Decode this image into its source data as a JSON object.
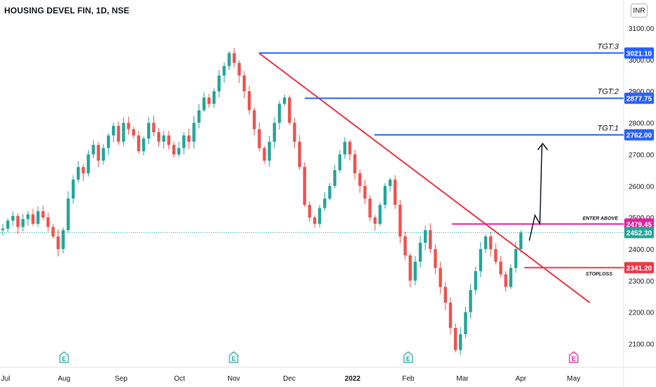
{
  "header": {
    "symbol_title": "HOUSING DEVEL FIN, 1D, NSE",
    "currency": "INR"
  },
  "chart_data": {
    "type": "candlestick",
    "title": "HOUSING DEVEL FIN, 1D, NSE",
    "x_axis": {
      "tick_labels": [
        "Jul",
        "Aug",
        "Sep",
        "Oct",
        "Nov",
        "Dec",
        "2022",
        "Feb",
        "Mar",
        "Apr",
        "May"
      ]
    },
    "y_axis": {
      "range": [
        2040,
        3180
      ],
      "ticks": [
        2100,
        2200,
        2300,
        2400,
        2500,
        2600,
        2700,
        2800,
        2900,
        3000,
        3100
      ],
      "tick_labels": [
        "2100.00",
        "2200.00",
        "2300.00",
        "2400.00",
        "2500.00",
        "2600.00",
        "2700.00",
        "2800.00",
        "2900.00",
        "3000.00",
        "3100.00"
      ],
      "grid": false
    },
    "colors": {
      "up": "#26a69a",
      "down": "#ef5350",
      "trendline": "#f23645",
      "target": "#2962ff",
      "entry": "#e91e9e",
      "stoploss": "#f23645",
      "last_price": "#26a69a",
      "arrow": "#131722"
    },
    "last_price": {
      "label": "2452.30",
      "value": 2452.3
    },
    "levels": [
      {
        "name": "TGT:3",
        "label": "TGT:3",
        "price_label": "3021.10",
        "value": 3021.1,
        "color": "#2962ff"
      },
      {
        "name": "TGT:2",
        "label": "TGT:2",
        "price_label": "2877.75",
        "value": 2877.75,
        "color": "#2962ff"
      },
      {
        "name": "TGT:1",
        "label": "TGT:1",
        "price_label": "2762.00",
        "value": 2762.0,
        "color": "#2962ff"
      },
      {
        "name": "enter-above",
        "label": "ENTER ABOVE",
        "price_label": "2479.45",
        "value": 2479.45,
        "color": "#e91e9e"
      },
      {
        "name": "stoploss",
        "label": "STOPLOSS",
        "price_label": "2341.20",
        "value": 2341.2,
        "color": "#f23645"
      }
    ],
    "trendline": {
      "from": {
        "x": "Nov",
        "y": 3021
      },
      "to": {
        "x": "May",
        "y": 2230
      }
    },
    "event_markers": [
      {
        "label": "E",
        "x": "Aug",
        "color": "#26a69a"
      },
      {
        "label": "E",
        "x": "Nov",
        "color": "#26a69a"
      },
      {
        "label": "E",
        "x": "Feb",
        "color": "#26a69a"
      },
      {
        "label": "E",
        "x": "May",
        "color": "#e91e9e"
      }
    ],
    "price_path": [
      2465,
      2490,
      2505,
      2470,
      2495,
      2510,
      2480,
      2520,
      2500,
      2470,
      2440,
      2400,
      2460,
      2560,
      2620,
      2660,
      2640,
      2700,
      2730,
      2680,
      2720,
      2760,
      2790,
      2740,
      2800,
      2780,
      2760,
      2710,
      2750,
      2800,
      2770,
      2740,
      2760,
      2730,
      2700,
      2720,
      2760,
      2740,
      2800,
      2840,
      2880,
      2860,
      2900,
      2950,
      2980,
      3021,
      2990,
      2950,
      2900,
      2840,
      2780,
      2720,
      2680,
      2740,
      2800,
      2860,
      2880,
      2800,
      2740,
      2660,
      2540,
      2500,
      2480,
      2530,
      2560,
      2600,
      2650,
      2700,
      2740,
      2700,
      2640,
      2600,
      2560,
      2500,
      2480,
      2540,
      2600,
      2620,
      2540,
      2440,
      2380,
      2300,
      2360,
      2420,
      2460,
      2400,
      2340,
      2280,
      2230,
      2150,
      2080,
      2130,
      2200,
      2270,
      2330,
      2400,
      2440,
      2400,
      2360,
      2320,
      2280,
      2340,
      2400,
      2452.3
    ]
  }
}
